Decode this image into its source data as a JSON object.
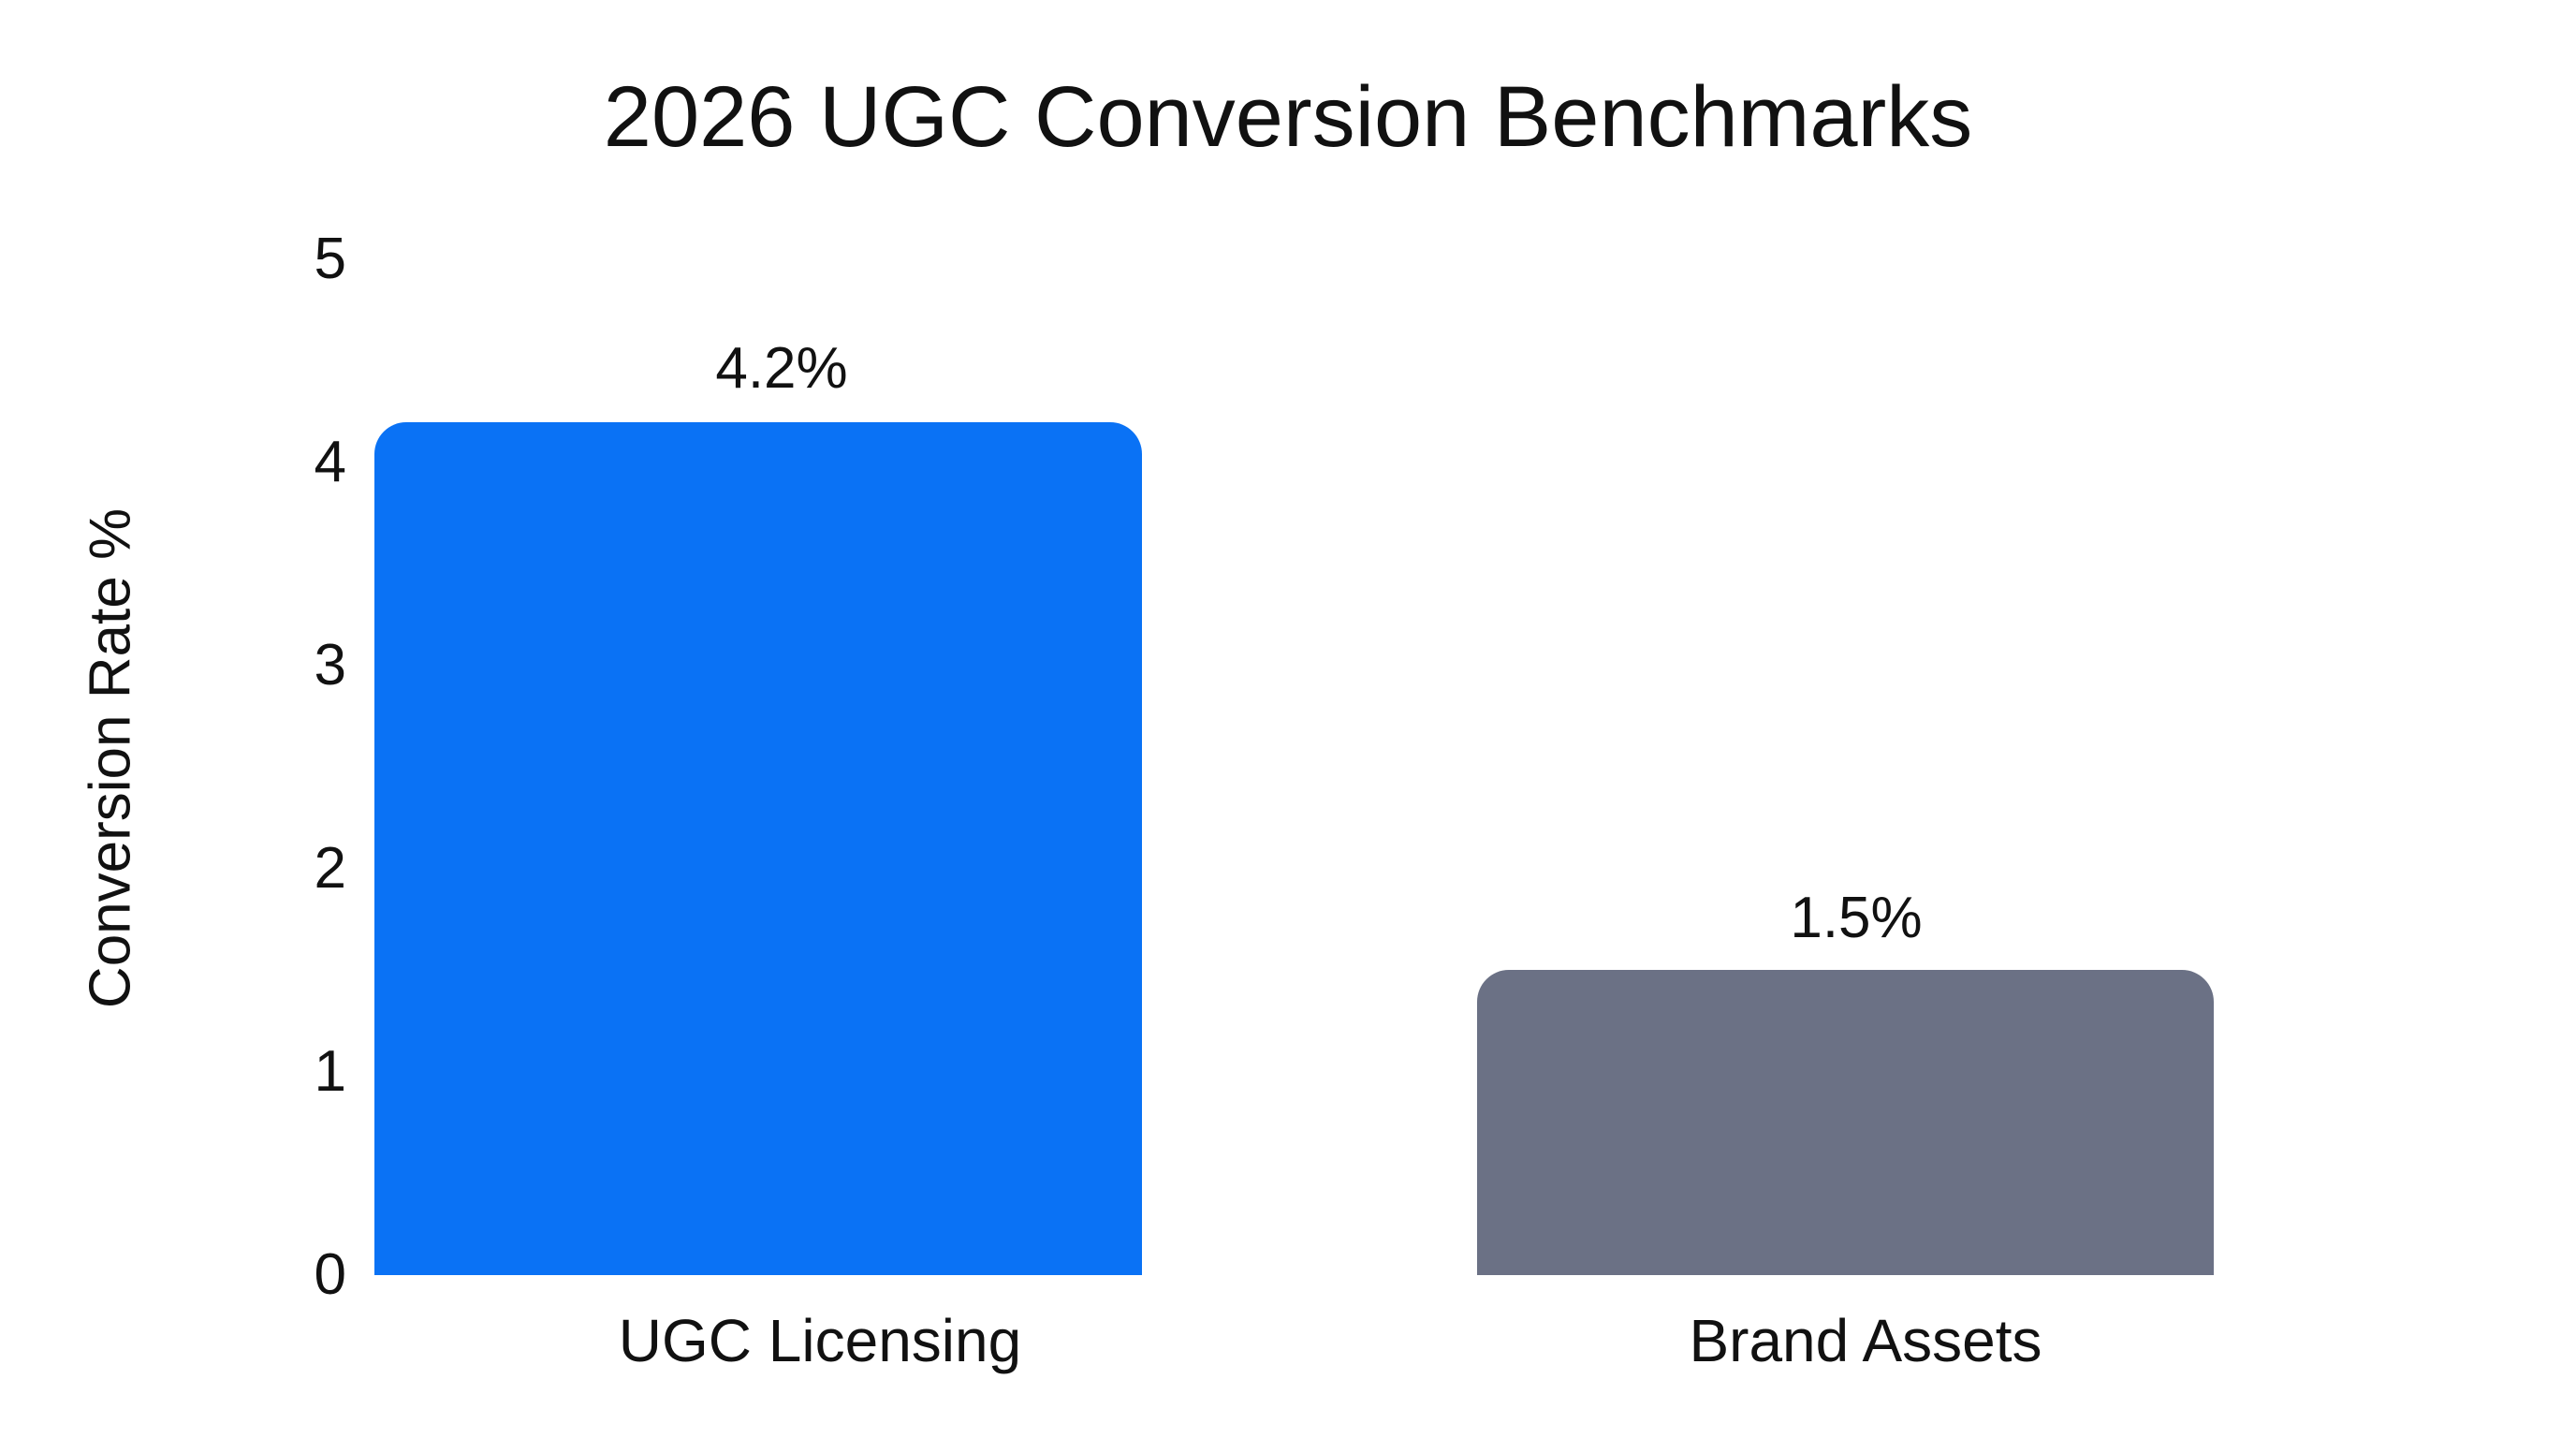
{
  "chart_data": {
    "type": "bar",
    "title": "2026 UGC Conversion Benchmarks",
    "xlabel": "",
    "ylabel": "Conversion Rate %",
    "categories": [
      "UGC Licensing",
      "Brand Assets"
    ],
    "values": [
      4.2,
      1.5
    ],
    "value_labels": [
      "4.2%",
      "1.5%"
    ],
    "colors": [
      "#0A72F5",
      "#6B7185"
    ],
    "ylim": [
      0,
      5
    ],
    "yticks": [
      "0",
      "1",
      "2",
      "3",
      "4",
      "5"
    ],
    "grid": false,
    "legend": null
  },
  "title": "2026 UGC Conversion Benchmarks",
  "y_axis": {
    "label": "Conversion Rate %",
    "ticks": [
      "0",
      "1",
      "2",
      "3",
      "4",
      "5"
    ]
  },
  "bars": [
    {
      "category": "UGC Licensing",
      "value_label": "4.2%",
      "color": "#0A72F5"
    },
    {
      "category": "Brand Assets",
      "value_label": "1.5%",
      "color": "#6B7185"
    }
  ]
}
